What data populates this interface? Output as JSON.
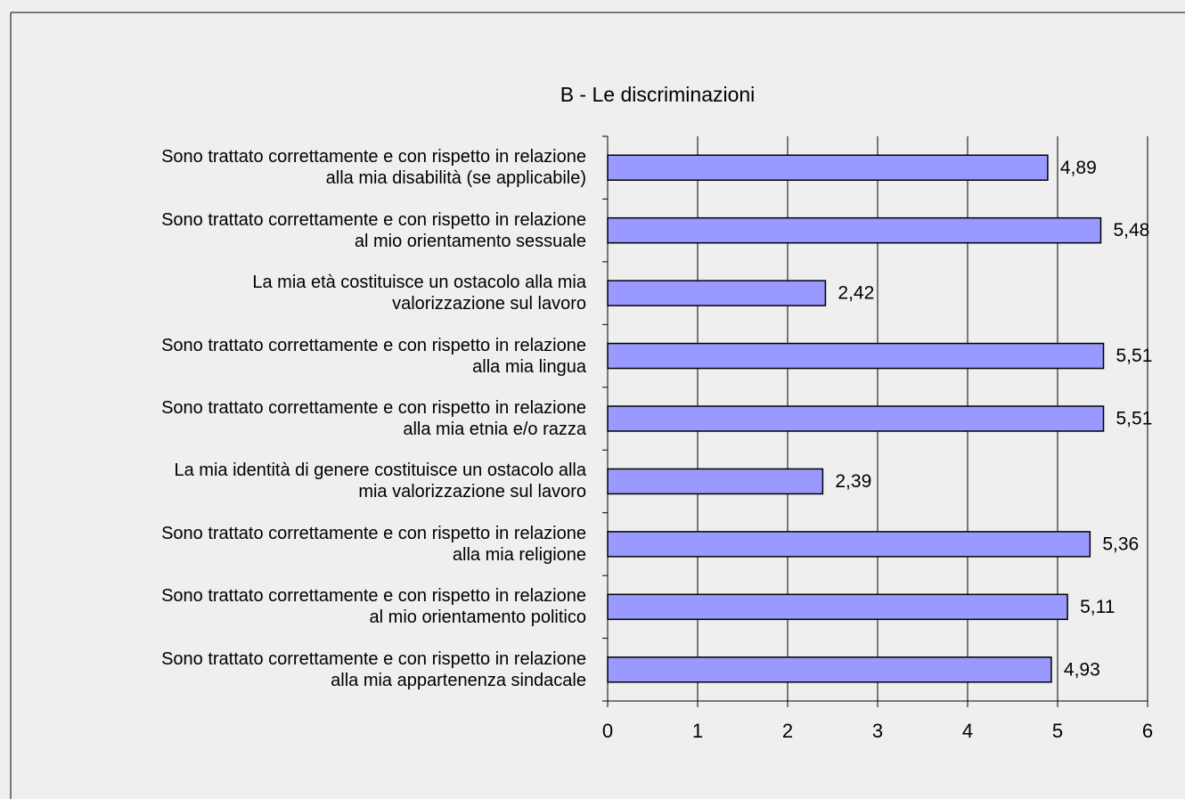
{
  "chart_data": {
    "type": "bar",
    "orientation": "horizontal",
    "title": "B -  Le discriminazioni",
    "categories": [
      "Sono trattato correttamente e con rispetto in relazione\nalla mia disabilità (se applicabile)",
      "Sono trattato correttamente e con rispetto in relazione\nal mio orientamento sessuale",
      "La mia età costituisce un ostacolo alla mia\nvalorizzazione sul lavoro",
      "Sono trattato correttamente e con rispetto in relazione\nalla mia lingua",
      "Sono trattato correttamente e con rispetto in relazione\nalla mia etnia e/o razza",
      "La mia identità di genere costituisce un ostacolo alla\nmia valorizzazione sul lavoro",
      "Sono trattato correttamente e con rispetto in relazione\nalla mia religione",
      "Sono trattato correttamente e con rispetto in relazione\nal mio orientamento politico",
      "Sono trattato correttamente e con rispetto in relazione\nalla mia appartenenza sindacale"
    ],
    "values": [
      4.89,
      5.48,
      2.42,
      5.51,
      5.51,
      2.39,
      5.36,
      5.11,
      4.93
    ],
    "value_labels": [
      "4,89",
      "5,48",
      "2,42",
      "5,51",
      "5,51",
      "2,39",
      "5,36",
      "5,11",
      "4,93"
    ],
    "color": "#9999ff",
    "xlim": [
      0,
      6
    ],
    "xticks": [
      0,
      1,
      2,
      3,
      4,
      5,
      6
    ],
    "grid": true
  }
}
